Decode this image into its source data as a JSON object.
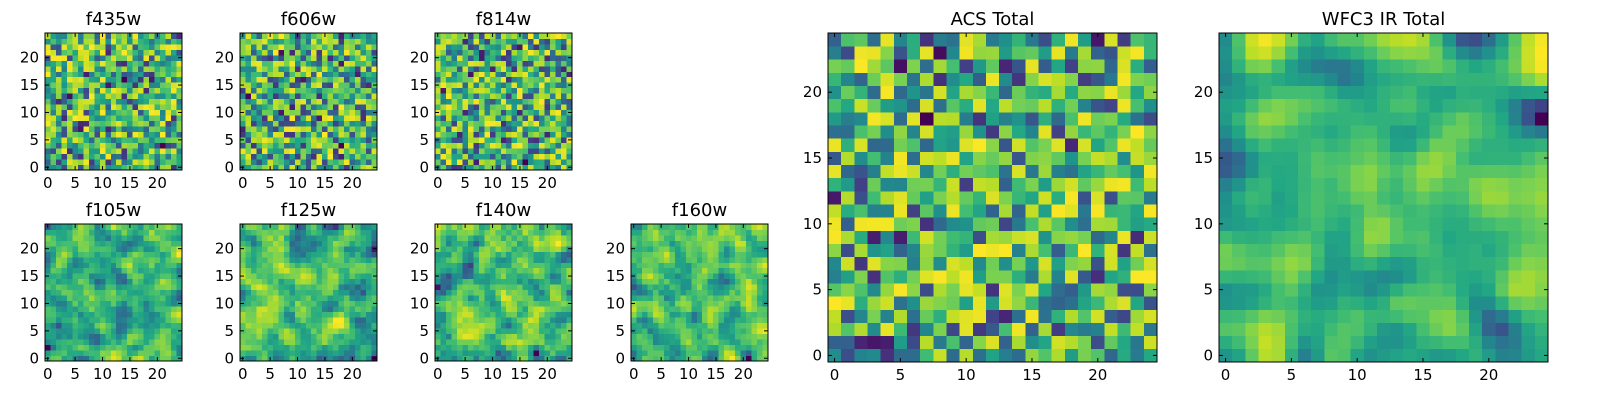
{
  "chart_data": [
    {
      "type": "heatmap",
      "title": "f435w",
      "grid": [
        25,
        25
      ],
      "xlim": [
        0,
        24
      ],
      "ylim": [
        0,
        24
      ],
      "xticks": [
        0,
        5,
        10,
        15,
        20
      ],
      "yticks": [
        0,
        5,
        10,
        15,
        20
      ],
      "seed": 11,
      "smooth": 0,
      "colormap": "viridis"
    },
    {
      "type": "heatmap",
      "title": "f606w",
      "grid": [
        25,
        25
      ],
      "xlim": [
        0,
        24
      ],
      "ylim": [
        0,
        24
      ],
      "xticks": [
        0,
        5,
        10,
        15,
        20
      ],
      "yticks": [
        0,
        5,
        10,
        15,
        20
      ],
      "seed": 23,
      "smooth": 0,
      "colormap": "viridis"
    },
    {
      "type": "heatmap",
      "title": "f814w",
      "grid": [
        25,
        25
      ],
      "xlim": [
        0,
        24
      ],
      "ylim": [
        0,
        24
      ],
      "xticks": [
        0,
        5,
        10,
        15,
        20
      ],
      "yticks": [
        0,
        5,
        10,
        15,
        20
      ],
      "seed": 37,
      "smooth": 0,
      "colormap": "viridis"
    },
    {
      "type": "heatmap",
      "title": "f105w",
      "grid": [
        25,
        25
      ],
      "xlim": [
        0,
        24
      ],
      "ylim": [
        0,
        24
      ],
      "xticks": [
        0,
        5,
        10,
        15,
        20
      ],
      "yticks": [
        0,
        5,
        10,
        15,
        20
      ],
      "seed": 41,
      "smooth": 1,
      "colormap": "viridis"
    },
    {
      "type": "heatmap",
      "title": "f125w",
      "grid": [
        25,
        25
      ],
      "xlim": [
        0,
        24
      ],
      "ylim": [
        0,
        24
      ],
      "xticks": [
        0,
        5,
        10,
        15,
        20
      ],
      "yticks": [
        0,
        5,
        10,
        15,
        20
      ],
      "seed": 53,
      "smooth": 1,
      "colormap": "viridis"
    },
    {
      "type": "heatmap",
      "title": "f140w",
      "grid": [
        25,
        25
      ],
      "xlim": [
        0,
        24
      ],
      "ylim": [
        0,
        24
      ],
      "xticks": [
        0,
        5,
        10,
        15,
        20
      ],
      "yticks": [
        0,
        5,
        10,
        15,
        20
      ],
      "seed": 67,
      "smooth": 1,
      "colormap": "viridis"
    },
    {
      "type": "heatmap",
      "title": "f160w",
      "grid": [
        25,
        25
      ],
      "xlim": [
        0,
        24
      ],
      "ylim": [
        0,
        24
      ],
      "xticks": [
        0,
        5,
        10,
        15,
        20
      ],
      "yticks": [
        0,
        5,
        10,
        15,
        20
      ],
      "seed": 79,
      "smooth": 1,
      "colormap": "viridis"
    },
    {
      "type": "heatmap",
      "title": "ACS Total",
      "grid": [
        25,
        25
      ],
      "xlim": [
        0,
        24
      ],
      "ylim": [
        0,
        24
      ],
      "xticks": [
        0,
        5,
        10,
        15,
        20
      ],
      "yticks": [
        0,
        5,
        10,
        15,
        20
      ],
      "seed": 97,
      "smooth": 0,
      "colormap": "viridis"
    },
    {
      "type": "heatmap",
      "title": "WFC3 IR Total",
      "grid": [
        25,
        25
      ],
      "xlim": [
        0,
        24
      ],
      "ylim": [
        0,
        24
      ],
      "xticks": [
        0,
        5,
        10,
        15,
        20
      ],
      "yticks": [
        0,
        5,
        10,
        15,
        20
      ],
      "seed": 113,
      "smooth": 2,
      "colormap": "viridis"
    }
  ]
}
